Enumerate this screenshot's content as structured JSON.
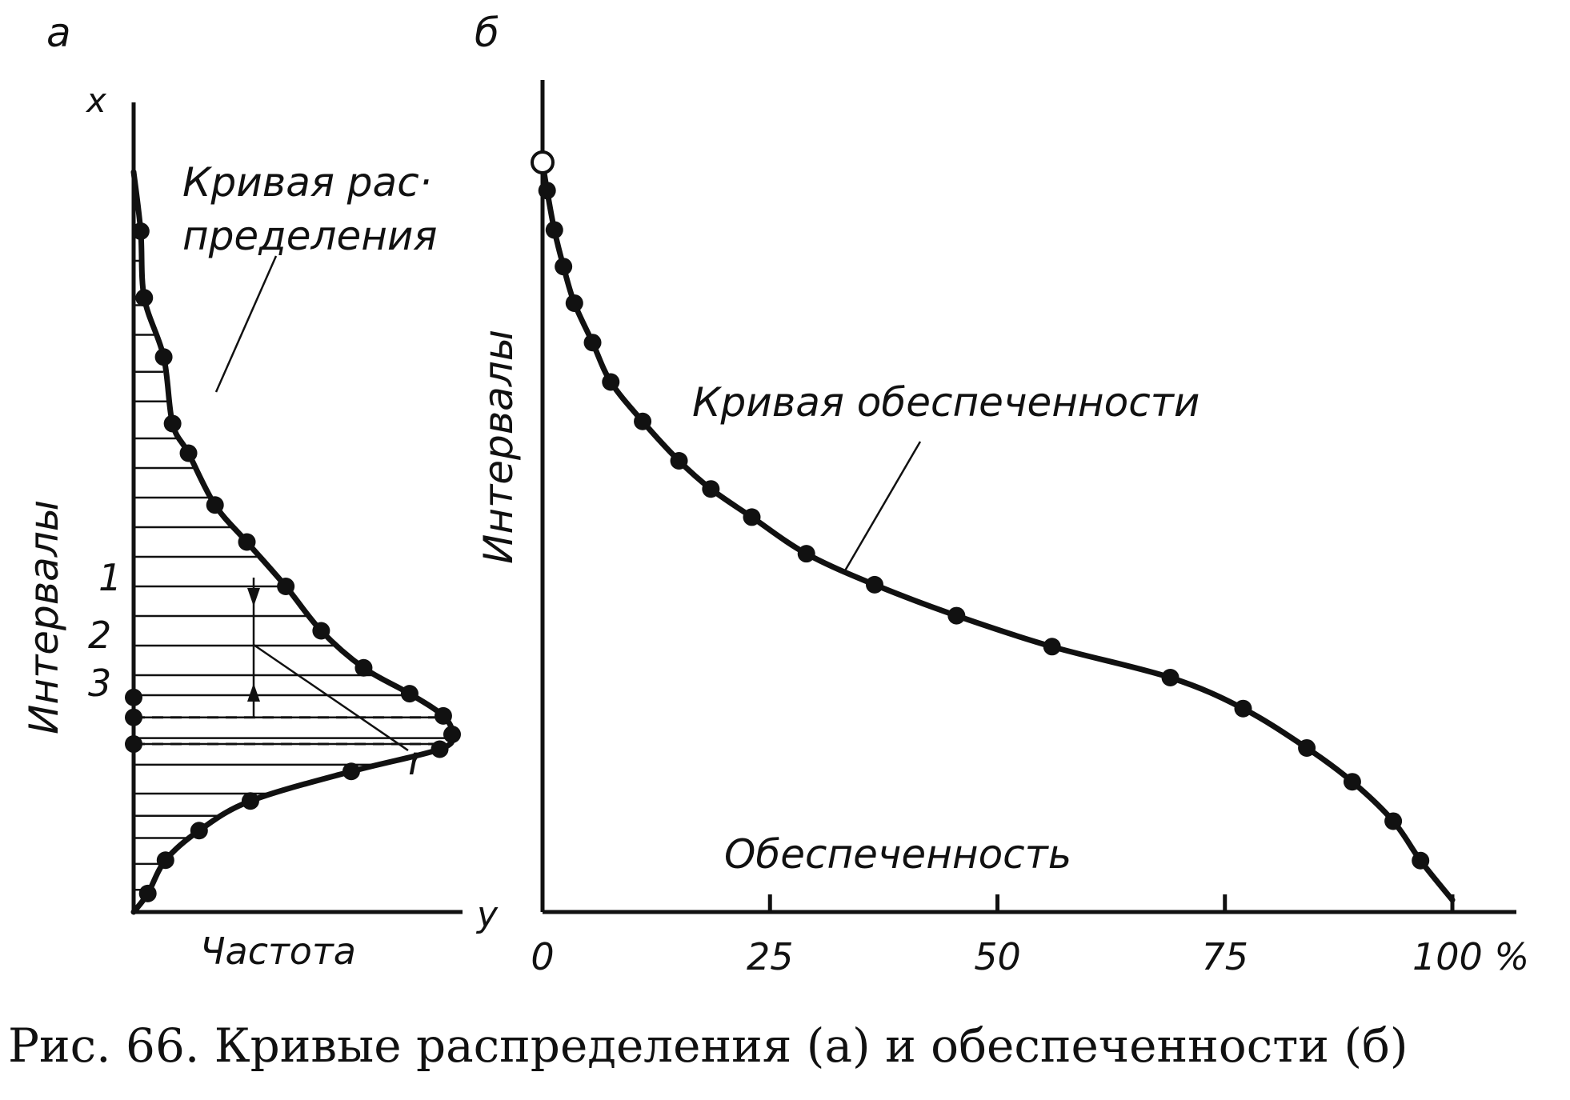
{
  "caption": "Рис. 66. Кривые распределения (а) и обеспеченности (б)",
  "chart_data": [
    {
      "type": "line",
      "panel_label": "а",
      "axis_label_x": "x",
      "axis_label_y": "y",
      "ylabel": "Интервалы",
      "xlabel": "Частота",
      "curve_label_line1": "Кривая рас·",
      "curve_label_line2": "пределения",
      "marker_labels": [
        "1",
        "2",
        "3"
      ],
      "marker_r": "r",
      "series": [
        {
          "name": "Кривая распределения",
          "points": [
            {
              "f": 0,
              "i": 100
            },
            {
              "f": 4,
              "i": 92
            },
            {
              "f": 6,
              "i": 83
            },
            {
              "f": 17,
              "i": 75
            },
            {
              "f": 22,
              "i": 66
            },
            {
              "f": 31,
              "i": 62
            },
            {
              "f": 46,
              "i": 55
            },
            {
              "f": 64,
              "i": 50
            },
            {
              "f": 86,
              "i": 44
            },
            {
              "f": 106,
              "i": 38
            },
            {
              "f": 130,
              "i": 33
            },
            {
              "f": 156,
              "i": 29.5
            },
            {
              "f": 175,
              "i": 26.5
            },
            {
              "f": 180,
              "i": 24
            },
            {
              "f": 173,
              "i": 22
            },
            {
              "f": 123,
              "i": 19
            },
            {
              "f": 66,
              "i": 15
            },
            {
              "f": 37,
              "i": 11
            },
            {
              "f": 18,
              "i": 7
            },
            {
              "f": 8,
              "i": 2.5
            },
            {
              "f": 0,
              "i": 0
            }
          ]
        }
      ],
      "axis_points": [
        {
          "f": 0,
          "i": 29
        },
        {
          "f": 0,
          "i": 26.3
        },
        {
          "f": 0,
          "i": 22.7
        }
      ],
      "hatch_levels": [
        92,
        88,
        82,
        78,
        73,
        69,
        64,
        60,
        56,
        52,
        48,
        44,
        40,
        36,
        32,
        29.3,
        26.3,
        23.5,
        22.7,
        19.9,
        16,
        13,
        10,
        6.5,
        3
      ],
      "dashed_levels": [
        26.3,
        22.7
      ]
    },
    {
      "type": "line",
      "panel_label": "б",
      "ylabel": "Интервалы",
      "xlabel": "Обеспеченность",
      "curve_label": "Кривая обеспеченности",
      "tick_labels": [
        "0",
        "25",
        "50",
        "75",
        "100 %"
      ],
      "xticks": [
        0,
        25,
        50,
        75,
        100
      ],
      "xlim": [
        0,
        100
      ],
      "series": [
        {
          "name": "Кривая обеспеченности",
          "x": [
            0,
            0.5,
            1.3,
            2.3,
            3.5,
            5.5,
            7.5,
            11,
            15,
            18.5,
            23,
            29,
            36.5,
            45.5,
            56,
            69,
            77,
            84,
            89,
            93.5,
            96.5,
            100
          ],
          "y": [
            100,
            95,
            88,
            81.5,
            75,
            68,
            61,
            54,
            47,
            42,
            37,
            30.5,
            25,
            19.5,
            14,
            8.5,
            3,
            -4,
            -10,
            -17,
            -24,
            -31
          ]
        }
      ],
      "open_points": [
        {
          "x": 0,
          "y": 100
        }
      ]
    }
  ]
}
